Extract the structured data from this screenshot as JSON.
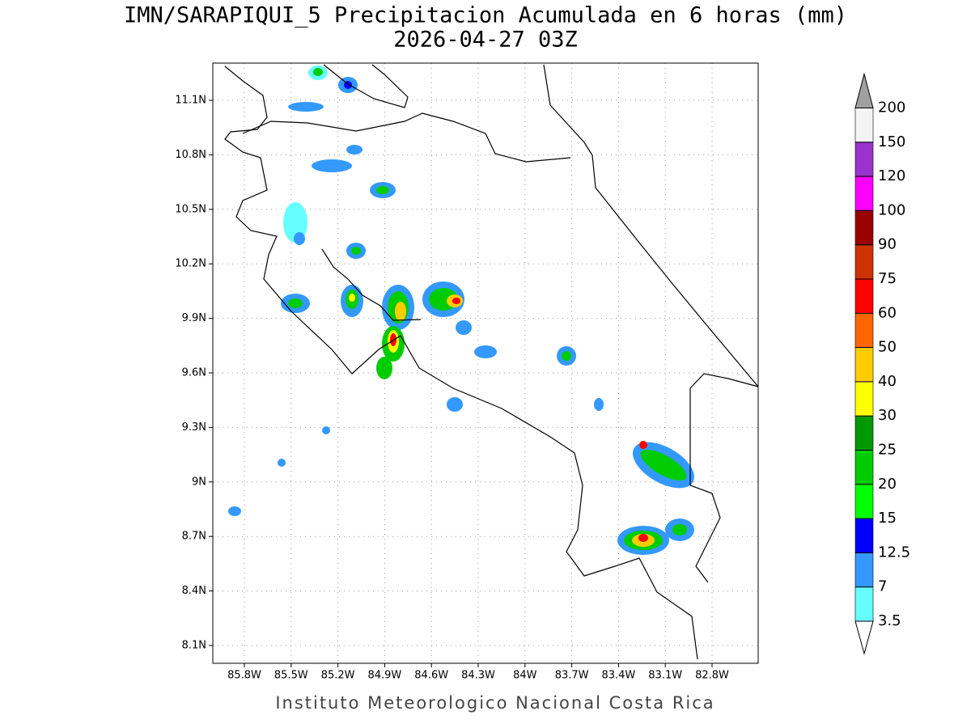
{
  "title": "IMN/SARAPIQUI_5 Precipitacion Acumulada en 6 horas (mm)",
  "subtitle": "2026-04-27 03Z",
  "map": {
    "xticks": [
      "85.8W",
      "85.5W",
      "85.2W",
      "84.9W",
      "84.6W",
      "84.3W",
      "84W",
      "83.7W",
      "83.4W",
      "83.1W",
      "82.8W"
    ],
    "yticks": [
      "11.1N",
      "10.8N",
      "10.5N",
      "10.2N",
      "9.9N",
      "9.6N",
      "9.3N",
      "9N",
      "8.7N",
      "8.4N",
      "8.1N"
    ],
    "grid": true
  },
  "colorbar": {
    "levels": [
      3.5,
      7,
      12.5,
      15,
      20,
      25,
      30,
      40,
      50,
      60,
      75,
      90,
      100,
      120,
      150,
      200
    ],
    "colors": [
      "#ffffff",
      "#66ffff",
      "#3399ff",
      "#0000ff",
      "#00ff00",
      "#00cc00",
      "#009900",
      "#ffff00",
      "#ffcc00",
      "#ff6600",
      "#ff0000",
      "#cc3300",
      "#990000",
      "#ff00ff",
      "#9933cc",
      "#f4f4f4",
      "#a0a0a0"
    ]
  },
  "footer": "Instituto Meteorologico Nacional Costa Rica"
}
